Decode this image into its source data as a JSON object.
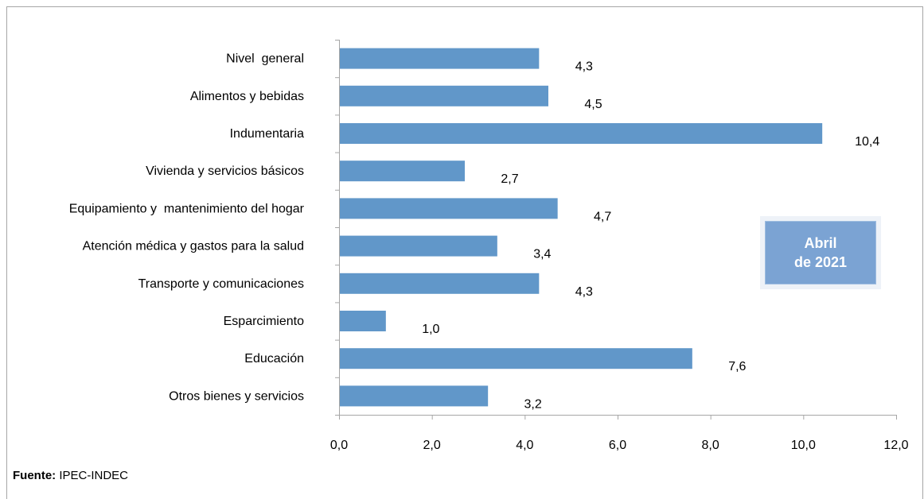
{
  "chart_data": {
    "type": "bar",
    "orientation": "horizontal",
    "categories": [
      "Nivel  general",
      "Alimentos y bebidas",
      "Indumentaria",
      "Vivienda y servicios básicos",
      "Equipamiento y  mantenimiento del hogar",
      "Atención médica y gastos para la salud",
      "Transporte y comunicaciones",
      "Esparcimiento",
      "Educación",
      "Otros bienes y servicios"
    ],
    "values": [
      4.3,
      4.5,
      10.4,
      2.7,
      4.7,
      3.4,
      4.3,
      1.0,
      7.6,
      3.2
    ],
    "value_labels": [
      "4,3",
      "4,5",
      "10,4",
      "2,7",
      "4,7",
      "3,4",
      "4,3",
      "1,0",
      "7,6",
      "3,2"
    ],
    "xlim": [
      0,
      12
    ],
    "xticks": [
      0,
      2,
      4,
      6,
      8,
      10,
      12
    ],
    "xtick_labels": [
      "0,0",
      "2,0",
      "4,0",
      "6,0",
      "8,0",
      "10,0",
      "12,0"
    ],
    "bar_color": "#6197c9",
    "grid": false,
    "legend": "none"
  },
  "badge": {
    "line1": "Abril",
    "line2": "de 2021"
  },
  "source": {
    "label": "Fuente:",
    "text": " IPEC-INDEC"
  }
}
